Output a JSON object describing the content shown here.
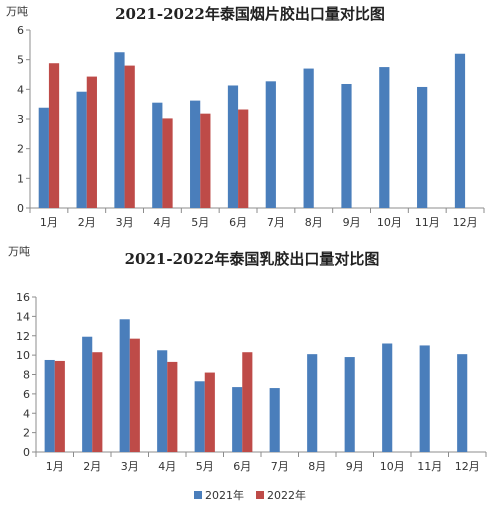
{
  "colors": {
    "s2021": "#4a7ebb",
    "s2022": "#be4b48",
    "axis": "#8c8c8c"
  },
  "chart_data": [
    {
      "type": "bar",
      "title": "2021-2022年泰国烟片胶出口量对比图",
      "unit_label": "万吨",
      "categories": [
        "1月",
        "2月",
        "3月",
        "4月",
        "5月",
        "6月",
        "7月",
        "8月",
        "9月",
        "10月",
        "11月",
        "12月"
      ],
      "ylim": [
        0,
        6
      ],
      "yticks": [
        "0",
        "1",
        "2",
        "3",
        "4",
        "5",
        "6"
      ],
      "series": [
        {
          "name": "2021年",
          "values": [
            3.38,
            3.92,
            5.25,
            3.55,
            3.62,
            4.13,
            4.27,
            4.7,
            4.18,
            4.75,
            4.08,
            5.2
          ]
        },
        {
          "name": "2022年",
          "values": [
            4.88,
            4.43,
            4.8,
            3.02,
            3.18,
            3.32,
            null,
            null,
            null,
            null,
            null,
            null
          ]
        }
      ]
    },
    {
      "type": "bar",
      "title": "2021-2022年泰国乳胶出口量对比图",
      "unit_label": "万吨",
      "categories": [
        "1月",
        "2月",
        "3月",
        "4月",
        "5月",
        "6月",
        "7月",
        "8月",
        "9月",
        "10月",
        "11月",
        "12月"
      ],
      "ylim": [
        0,
        16
      ],
      "yticks": [
        "0",
        "2",
        "4",
        "6",
        "8",
        "10",
        "12",
        "14",
        "16"
      ],
      "series": [
        {
          "name": "2021年",
          "values": [
            9.5,
            11.9,
            13.7,
            10.5,
            7.3,
            6.7,
            6.6,
            10.1,
            9.8,
            11.2,
            11.0,
            10.1
          ]
        },
        {
          "name": "2022年",
          "values": [
            9.4,
            10.3,
            11.7,
            9.3,
            8.2,
            10.3,
            null,
            null,
            null,
            null,
            null,
            null
          ]
        }
      ]
    }
  ],
  "legend": {
    "items": [
      "2021年",
      "2022年"
    ]
  }
}
